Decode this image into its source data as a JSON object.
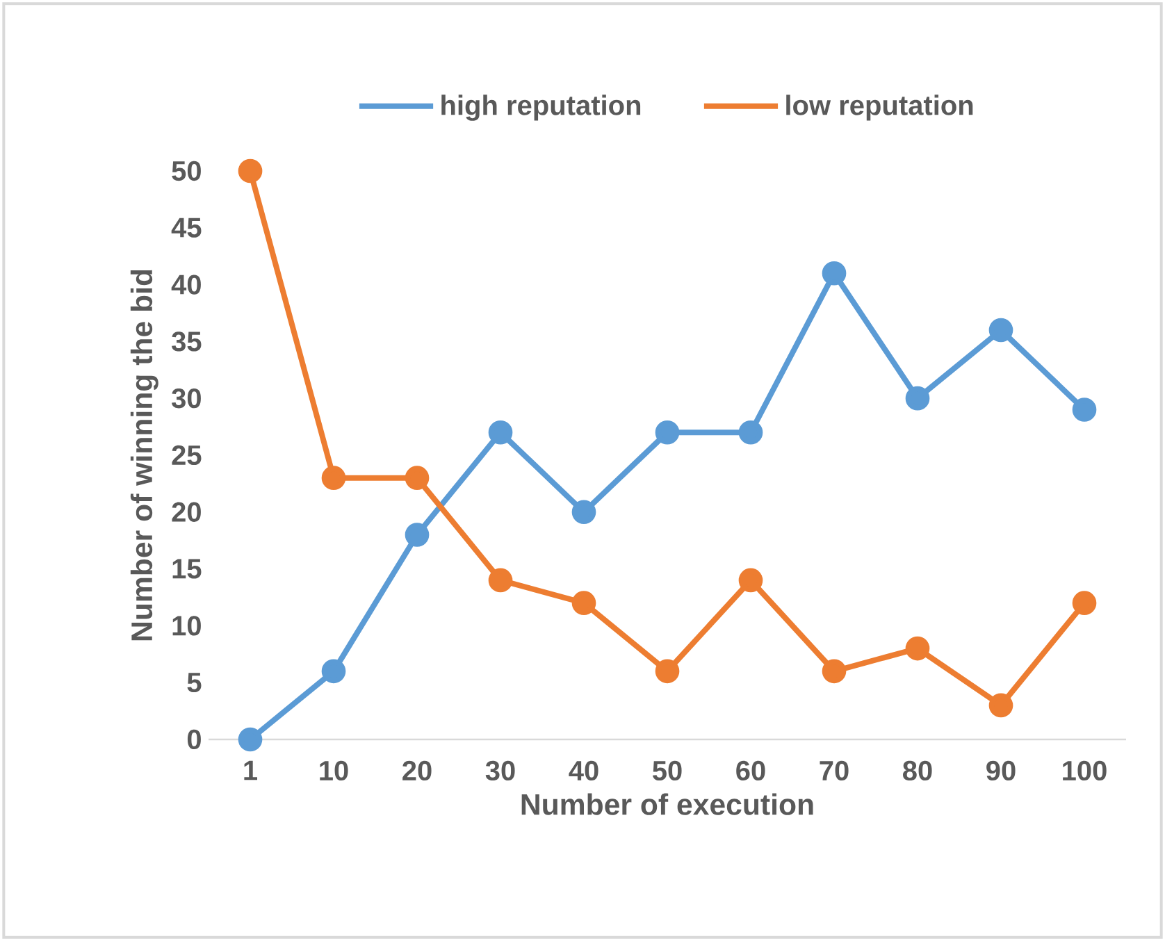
{
  "chart_data": {
    "type": "line",
    "xlabel": "Number of execution",
    "ylabel": "Number of winning the bid",
    "categories": [
      "1",
      "10",
      "20",
      "30",
      "40",
      "50",
      "60",
      "70",
      "80",
      "90",
      "100"
    ],
    "series": [
      {
        "name": "high reputation",
        "color": "#5b9bd5",
        "values": [
          0,
          6,
          18,
          27,
          20,
          27,
          27,
          41,
          30,
          36,
          29
        ]
      },
      {
        "name": "low reputation",
        "color": "#ed7d31",
        "values": [
          50,
          23,
          23,
          14,
          12,
          6,
          14,
          6,
          8,
          3,
          12
        ]
      }
    ],
    "ylim": [
      0,
      50
    ],
    "yticks": [
      0,
      5,
      10,
      15,
      20,
      25,
      30,
      35,
      40,
      45,
      50
    ],
    "legend": "top",
    "marker": "circle"
  }
}
